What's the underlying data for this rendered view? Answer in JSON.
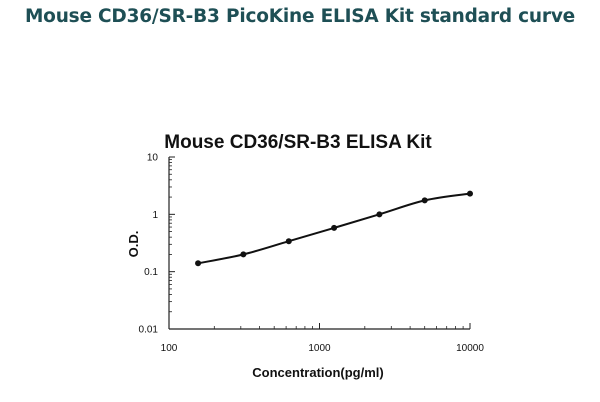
{
  "page": {
    "title": "Mouse CD36/SR-B3 PicoKine ELISA Kit standard curve"
  },
  "chart_data": {
    "type": "line",
    "title": "Mouse CD36/SR-B3 ELISA Kit",
    "xlabel": "Concentration(pg/ml)",
    "ylabel": "O.D.",
    "xscale": "log",
    "yscale": "log",
    "xlim": [
      100,
      10000
    ],
    "ylim": [
      0.01,
      10
    ],
    "xticks": [
      "100",
      "1000",
      "10000"
    ],
    "yticks": [
      "10",
      "1",
      "0.1",
      "0.01"
    ],
    "grid": false,
    "series": [
      {
        "x": [
          156,
          312,
          625,
          1250,
          2500,
          5000,
          10000
        ],
        "y": [
          0.14,
          0.2,
          0.34,
          0.58,
          1.0,
          1.75,
          2.3
        ]
      }
    ],
    "colors": {
      "line": "#111111",
      "marker": "#111111",
      "axis": "#222222"
    }
  }
}
